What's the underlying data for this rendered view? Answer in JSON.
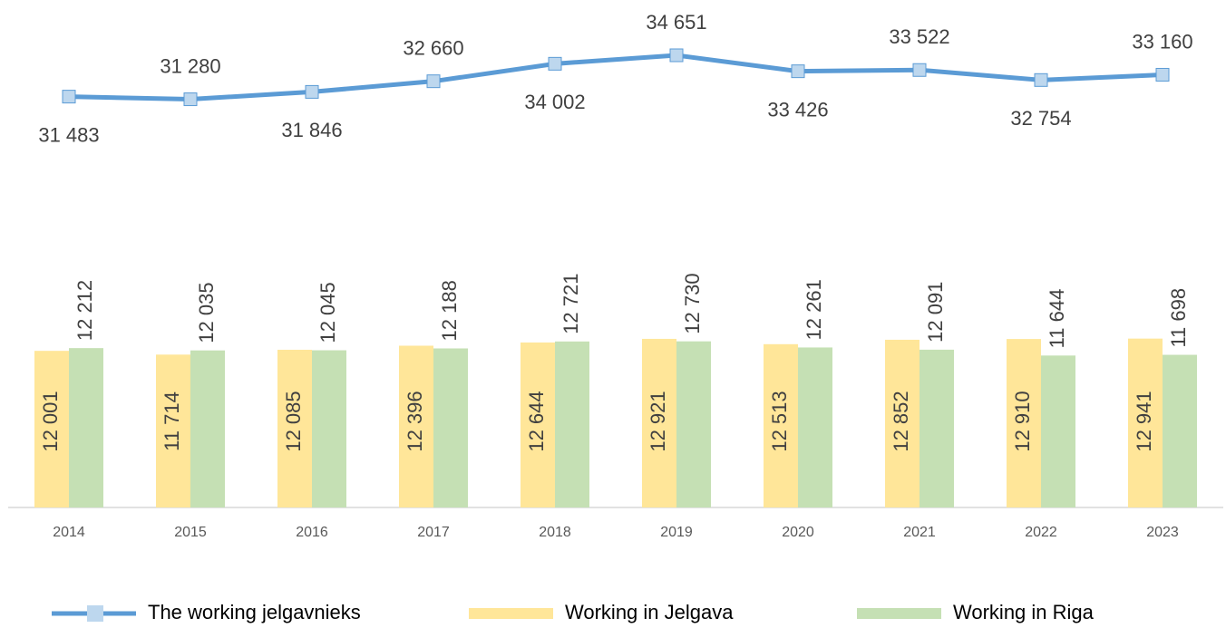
{
  "chart_data": {
    "type": "combo",
    "categories": [
      "2014",
      "2015",
      "2016",
      "2017",
      "2018",
      "2019",
      "2020",
      "2021",
      "2022",
      "2023"
    ],
    "series": [
      {
        "name": "The working jelgavnieks",
        "type": "line",
        "color": "#5B9BD5",
        "marker_color": "#BDD7EE",
        "values": [
          31483,
          31280,
          31846,
          32660,
          34002,
          34651,
          33426,
          33522,
          32754,
          33160
        ],
        "value_labels": [
          "31 483",
          "31 280",
          "31 846",
          "32 660",
          "34 002",
          "34 651",
          "33 426",
          "33 522",
          "32 754",
          "33 160"
        ]
      },
      {
        "name": "Working in Jelgava",
        "type": "bar",
        "color": "#FFE699",
        "values": [
          12001,
          11714,
          12085,
          12396,
          12644,
          12921,
          12513,
          12852,
          12910,
          12941
        ],
        "value_labels": [
          "12 001",
          "11 714",
          "12 085",
          "12 396",
          "12 644",
          "12 921",
          "12 513",
          "12 852",
          "12 910",
          "12 941"
        ]
      },
      {
        "name": "Working in Riga",
        "type": "bar",
        "color": "#C5E0B4",
        "values": [
          12212,
          12035,
          12045,
          12188,
          12721,
          12730,
          12261,
          12091,
          11644,
          11698
        ],
        "value_labels": [
          "12 212",
          "12 035",
          "12 045",
          "12 188",
          "12 721",
          "12 730",
          "12 261",
          "12 091",
          "11 644",
          "11 698"
        ]
      }
    ],
    "legend": "bottom"
  }
}
